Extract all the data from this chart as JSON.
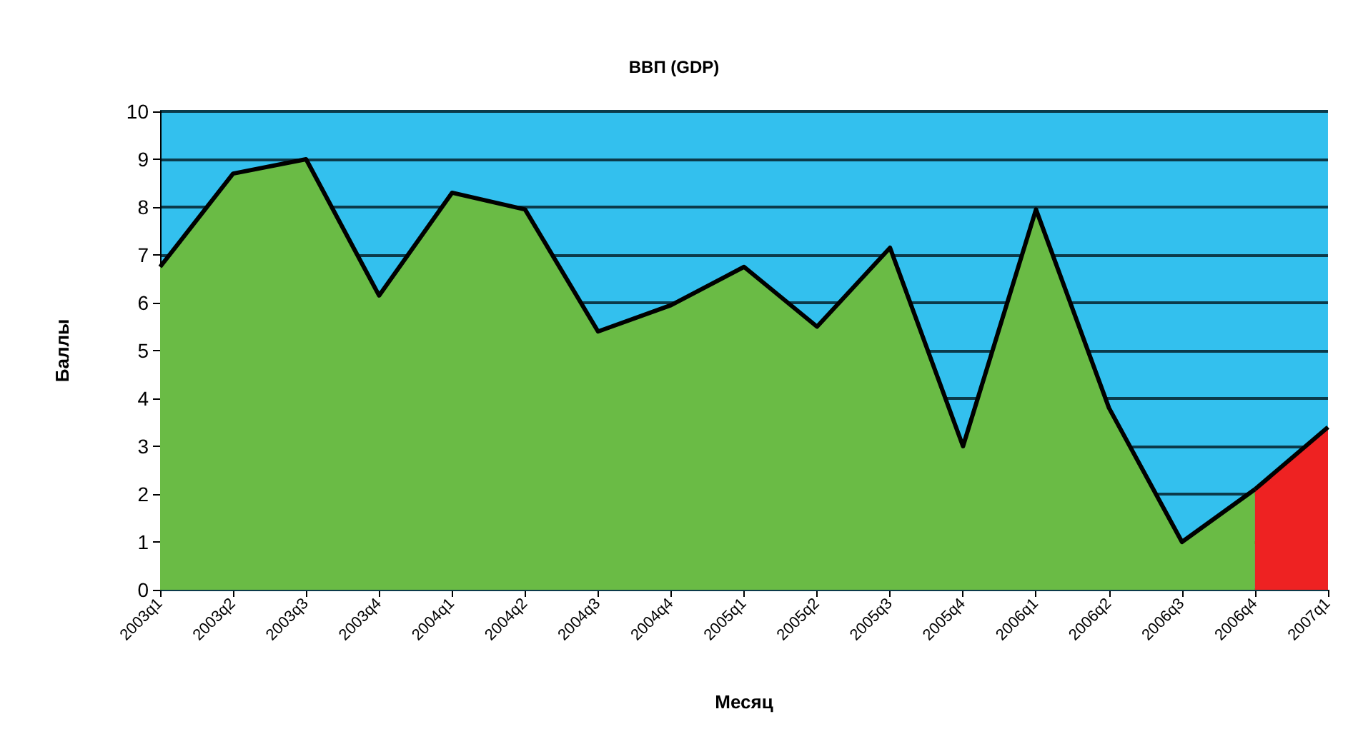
{
  "chart_data": {
    "type": "area",
    "title": "ВВП (GDP)",
    "xlabel": "Месяц",
    "ylabel": "Баллы",
    "categories": [
      "2003q1",
      "2003q2",
      "2003q3",
      "2003q4",
      "2004q1",
      "2004q2",
      "2004q3",
      "2004q4",
      "2005q1",
      "2005q2",
      "2005q3",
      "2005q4",
      "2006q1",
      "2006q2",
      "2006q3",
      "2006q4",
      "2007q1"
    ],
    "series": [
      {
        "color": "#6abb45",
        "values": [
          6.75,
          8.7,
          9.0,
          6.15,
          8.3,
          7.95,
          5.4,
          5.95,
          6.75,
          5.5,
          7.15,
          3.0,
          7.95,
          3.8,
          1.0,
          2.1,
          null
        ]
      },
      {
        "color": "#ee2222",
        "values": [
          null,
          null,
          null,
          null,
          null,
          null,
          null,
          null,
          null,
          null,
          null,
          null,
          null,
          null,
          null,
          2.1,
          3.4
        ]
      }
    ],
    "bands": [
      {
        "axis": "y",
        "from": 0,
        "to": 10,
        "color": "#33c0ee"
      }
    ],
    "ylim": [
      0,
      10
    ],
    "yticks": [
      0,
      1,
      2,
      3,
      4,
      5,
      6,
      7,
      8,
      9,
      10
    ],
    "grid": "y",
    "marker": "none"
  }
}
